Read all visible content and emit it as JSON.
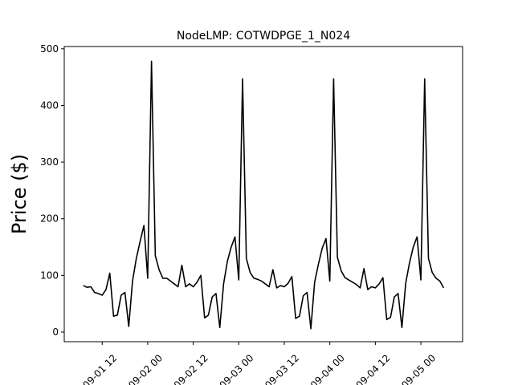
{
  "chart_data": {
    "type": "line",
    "title": "NodeLMP: COTWDPGE_1_N024",
    "ylabel": "Price ($)",
    "color": "#000000",
    "x": [
      "09-01 07",
      "09-01 08",
      "09-01 09",
      "09-01 10",
      "09-01 11",
      "09-01 12",
      "09-01 13",
      "09-01 14",
      "09-01 15",
      "09-01 16",
      "09-01 17",
      "09-01 18",
      "09-01 19",
      "09-01 20",
      "09-01 21",
      "09-01 22",
      "09-01 23",
      "09-02 00",
      "09-02 01",
      "09-02 02",
      "09-02 03",
      "09-02 04",
      "09-02 05",
      "09-02 06",
      "09-02 07",
      "09-02 08",
      "09-02 09",
      "09-02 10",
      "09-02 11",
      "09-02 12",
      "09-02 13",
      "09-02 14",
      "09-02 15",
      "09-02 16",
      "09-02 17",
      "09-02 18",
      "09-02 19",
      "09-02 20",
      "09-02 21",
      "09-02 22",
      "09-02 23",
      "09-03 00",
      "09-03 01",
      "09-03 02",
      "09-03 03",
      "09-03 04",
      "09-03 05",
      "09-03 06",
      "09-03 07",
      "09-03 08",
      "09-03 09",
      "09-03 10",
      "09-03 11",
      "09-03 12",
      "09-03 13",
      "09-03 14",
      "09-03 15",
      "09-03 16",
      "09-03 17",
      "09-03 18",
      "09-03 19",
      "09-03 20",
      "09-03 21",
      "09-03 22",
      "09-03 23",
      "09-04 00",
      "09-04 01",
      "09-04 02",
      "09-04 03",
      "09-04 04",
      "09-04 05",
      "09-04 06",
      "09-04 07",
      "09-04 08",
      "09-04 09",
      "09-04 10",
      "09-04 11",
      "09-04 12",
      "09-04 13",
      "09-04 14",
      "09-04 15",
      "09-04 16",
      "09-04 17",
      "09-04 18",
      "09-04 19",
      "09-04 20",
      "09-04 21",
      "09-04 22",
      "09-04 23",
      "09-05 00",
      "09-05 01",
      "09-05 02",
      "09-05 03",
      "09-05 04",
      "09-05 05",
      "09-05 06"
    ],
    "values": [
      82,
      79,
      80,
      70,
      68,
      65,
      75,
      104,
      28,
      30,
      65,
      70,
      10,
      90,
      130,
      160,
      188,
      95,
      478,
      135,
      110,
      95,
      95,
      90,
      85,
      80,
      118,
      80,
      85,
      80,
      88,
      100,
      25,
      30,
      62,
      68,
      8,
      85,
      125,
      150,
      168,
      92,
      447,
      130,
      105,
      95,
      93,
      90,
      85,
      80,
      110,
      78,
      82,
      80,
      86,
      98,
      24,
      28,
      64,
      70,
      6,
      88,
      120,
      148,
      165,
      90,
      447,
      132,
      108,
      96,
      92,
      88,
      84,
      78,
      112,
      75,
      80,
      78,
      85,
      96,
      22,
      26,
      62,
      68,
      8,
      86,
      122,
      150,
      168,
      92,
      447,
      130,
      105,
      95,
      90,
      78
    ],
    "xlim": [
      "09-01 02",
      "09-05 11"
    ],
    "xticks": [
      "09-01 12",
      "09-02 00",
      "09-02 12",
      "09-03 00",
      "09-03 12",
      "09-04 00",
      "09-04 12",
      "09-05 00"
    ],
    "ylim": [
      -17,
      504
    ],
    "yticks": [
      0,
      100,
      200,
      300,
      400,
      500
    ]
  }
}
